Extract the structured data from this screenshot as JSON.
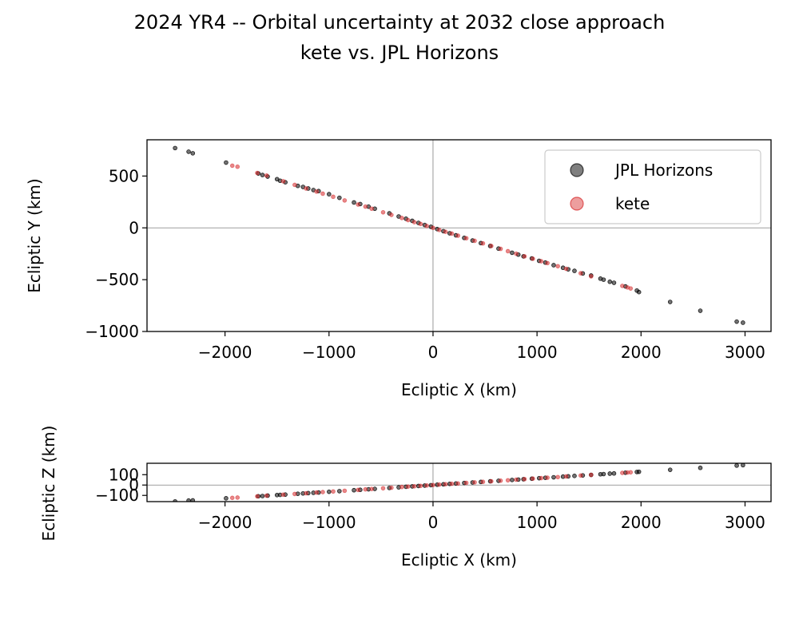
{
  "title_lines": [
    "2024 YR4 -- Orbital uncertainty at 2032 close approach",
    "kete vs. JPL Horizons"
  ],
  "colors": {
    "jpl": "#000000",
    "kete": "#d62728",
    "axis": "#000000",
    "zero_line": "#808080"
  },
  "chart_data": [
    {
      "type": "scatter",
      "xlabel": "Ecliptic X (km)",
      "ylabel": "Ecliptic Y (km)",
      "xlim": [
        -2750,
        3250
      ],
      "ylim": [
        -1000,
        850
      ],
      "x_ticks": [
        -2000,
        -1000,
        0,
        1000,
        2000,
        3000
      ],
      "x_tick_labels": [
        "−2000",
        "−1000",
        "0",
        "1000",
        "2000",
        "3000"
      ],
      "y_ticks": [
        -1000,
        -500,
        0,
        500
      ],
      "y_tick_labels": [
        "−1000",
        "−500",
        "0",
        "500"
      ],
      "zero_lines": true,
      "grid": false,
      "legend": {
        "position": "top-right",
        "entries": [
          "JPL Horizons",
          "kete"
        ]
      },
      "series": [
        {
          "name": "JPL Horizons",
          "color": "#000000",
          "x": [
            -2480,
            -2350,
            -2310,
            -1990,
            -1680,
            -1640,
            -1590,
            -1500,
            -1470,
            -1420,
            -1300,
            -1250,
            -1200,
            -1150,
            -1100,
            -1000,
            -900,
            -760,
            -700,
            -620,
            -560,
            -420,
            -330,
            -260,
            -200,
            -140,
            -80,
            -20,
            40,
            100,
            160,
            220,
            300,
            380,
            460,
            550,
            630,
            760,
            820,
            870,
            950,
            1020,
            1080,
            1160,
            1250,
            1300,
            1360,
            1440,
            1520,
            1610,
            1640,
            1700,
            1740,
            1850,
            1960,
            1980,
            2280,
            2570,
            2920,
            2980
          ],
          "y": [
            770,
            735,
            720,
            630,
            525,
            510,
            495,
            470,
            455,
            440,
            405,
            395,
            380,
            365,
            355,
            325,
            290,
            245,
            230,
            205,
            185,
            140,
            110,
            88,
            68,
            48,
            28,
            10,
            -12,
            -32,
            -52,
            -72,
            -97,
            -122,
            -147,
            -175,
            -200,
            -240,
            -258,
            -275,
            -295,
            -318,
            -335,
            -360,
            -385,
            -400,
            -415,
            -440,
            -460,
            -490,
            -500,
            -520,
            -530,
            -565,
            -605,
            -620,
            -715,
            -800,
            -905,
            -915
          ]
        },
        {
          "name": "kete",
          "color": "#d62728",
          "x": [
            -1930,
            -1880,
            -1690,
            -1600,
            -1440,
            -1330,
            -1220,
            -1120,
            -1060,
            -960,
            -850,
            -720,
            -650,
            -590,
            -480,
            -400,
            -300,
            -240,
            -180,
            -120,
            -60,
            0,
            60,
            120,
            180,
            240,
            320,
            400,
            480,
            560,
            650,
            720,
            800,
            880,
            960,
            1040,
            1100,
            1200,
            1280,
            1420,
            1520,
            1820,
            1870,
            1900
          ],
          "y": [
            600,
            590,
            530,
            505,
            450,
            415,
            380,
            350,
            330,
            300,
            265,
            225,
            205,
            185,
            150,
            125,
            95,
            75,
            55,
            38,
            18,
            0,
            -20,
            -38,
            -55,
            -75,
            -100,
            -125,
            -150,
            -175,
            -203,
            -225,
            -250,
            -275,
            -298,
            -322,
            -340,
            -370,
            -395,
            -438,
            -468,
            -560,
            -575,
            -585
          ]
        }
      ]
    },
    {
      "type": "scatter",
      "xlabel": "Ecliptic X (km)",
      "ylabel": "Ecliptic Z (km)",
      "xlim": [
        -2750,
        3250
      ],
      "ylim": [
        -160,
        210
      ],
      "x_ticks": [
        -2000,
        -1000,
        0,
        1000,
        2000,
        3000
      ],
      "x_tick_labels": [
        "−2000",
        "−1000",
        "0",
        "1000",
        "2000",
        "3000"
      ],
      "y_ticks": [
        -100,
        0,
        100
      ],
      "y_tick_labels": [
        "−100",
        "0",
        "100"
      ],
      "zero_lines": true,
      "grid": false,
      "series": [
        {
          "name": "JPL Horizons",
          "color": "#000000",
          "x": [
            -2480,
            -2350,
            -2310,
            -1990,
            -1680,
            -1640,
            -1590,
            -1500,
            -1470,
            -1420,
            -1300,
            -1250,
            -1200,
            -1150,
            -1100,
            -1000,
            -900,
            -760,
            -700,
            -620,
            -560,
            -420,
            -330,
            -260,
            -200,
            -140,
            -80,
            -20,
            40,
            100,
            160,
            220,
            300,
            380,
            460,
            550,
            630,
            760,
            820,
            870,
            950,
            1020,
            1080,
            1160,
            1250,
            1300,
            1360,
            1440,
            1520,
            1610,
            1640,
            1700,
            1740,
            1850,
            1960,
            1980,
            2280,
            2570,
            2920,
            2980
          ],
          "y": [
            -158,
            -150,
            -148,
            -128,
            -108,
            -106,
            -102,
            -97,
            -95,
            -92,
            -84,
            -81,
            -78,
            -75,
            -72,
            -65,
            -59,
            -50,
            -46,
            -41,
            -37,
            -28,
            -22,
            -17,
            -13,
            -9,
            -5,
            -1,
            3,
            7,
            11,
            15,
            20,
            25,
            30,
            36,
            41,
            49,
            53,
            56,
            61,
            66,
            70,
            75,
            81,
            84,
            88,
            93,
            98,
            104,
            106,
            110,
            112,
            119,
            126,
            128,
            147,
            166,
            188,
            192
          ]
        },
        {
          "name": "kete",
          "color": "#d62728",
          "x": [
            -1930,
            -1880,
            -1690,
            -1600,
            -1440,
            -1330,
            -1220,
            -1120,
            -1060,
            -960,
            -850,
            -720,
            -650,
            -590,
            -480,
            -400,
            -300,
            -240,
            -180,
            -120,
            -60,
            0,
            60,
            120,
            180,
            240,
            320,
            400,
            480,
            560,
            650,
            720,
            800,
            880,
            960,
            1040,
            1100,
            1200,
            1280,
            1420,
            1520,
            1820,
            1870,
            1900
          ],
          "y": [
            -124,
            -121,
            -109,
            -103,
            -93,
            -86,
            -79,
            -72,
            -68,
            -62,
            -55,
            -47,
            -42,
            -38,
            -31,
            -26,
            -19,
            -15,
            -12,
            -8,
            -4,
            0,
            4,
            8,
            12,
            15,
            21,
            26,
            31,
            36,
            42,
            46,
            52,
            57,
            62,
            67,
            71,
            77,
            83,
            92,
            98,
            117,
            121,
            123
          ]
        }
      ]
    }
  ]
}
